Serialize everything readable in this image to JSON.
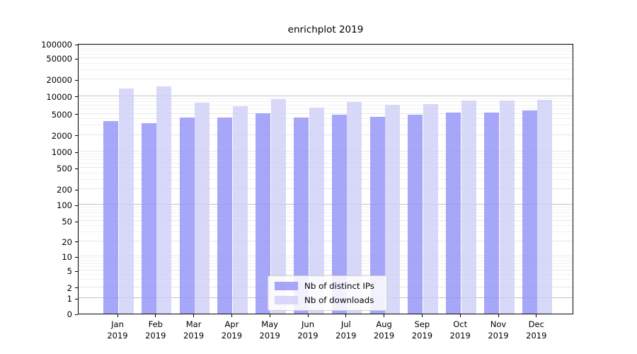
{
  "title": "enrichplot 2019",
  "chart_data": {
    "type": "bar",
    "title": "enrichplot 2019",
    "categories": [
      "Jan",
      "Feb",
      "Mar",
      "Apr",
      "May",
      "Jun",
      "Jul",
      "Aug",
      "Sep",
      "Oct",
      "Nov",
      "Dec"
    ],
    "category_year": "2019",
    "series": [
      {
        "name": "Nb of distinct IPs",
        "color": "rgba(148,148,248,0.82)",
        "color_hex": "#a9a9fa",
        "values": [
          3700,
          3330,
          4200,
          4250,
          5050,
          4200,
          4850,
          4400,
          4850,
          5250,
          5250,
          5650
        ]
      },
      {
        "name": "Nb of downloads",
        "color": "rgba(206,206,248,0.80)",
        "color_hex": "#d8d8fa",
        "values": [
          13900,
          14900,
          7800,
          6800,
          8800,
          6400,
          7950,
          7200,
          7400,
          8450,
          8350,
          8700
        ]
      }
    ],
    "yscale": "log-from-zero",
    "ylim": [
      0,
      100000
    ],
    "yticks": [
      0,
      1,
      2,
      5,
      10,
      20,
      50,
      100,
      200,
      500,
      1000,
      2000,
      5000,
      10000,
      20000,
      50000,
      100000
    ],
    "major_gridlines": [
      1,
      100,
      10000
    ],
    "grid": true,
    "legend_position": "lower-center",
    "xlabel": "",
    "ylabel": ""
  },
  "colors": {
    "ips_bar": "#a9a9fa",
    "downloads_bar": "#d8d8fa",
    "grid_major": "#c3c3c3",
    "grid_minor": "#e7e7e7",
    "spine": "#000000",
    "legend_border": "#d0d0d0",
    "background": "#ffffff"
  }
}
